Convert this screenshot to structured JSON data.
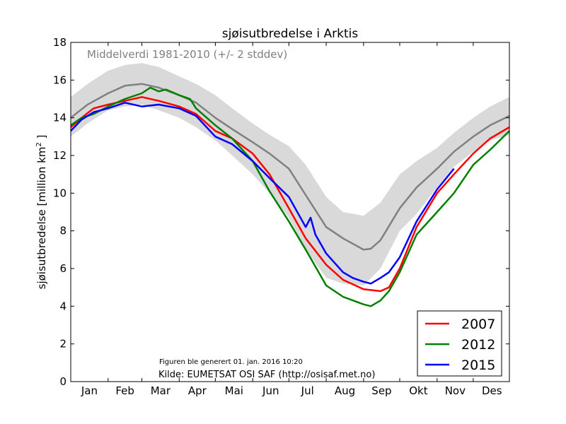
{
  "chart_data": {
    "type": "line",
    "title": "sjøisutbredelse i Arktis",
    "ylabel_main": "sjøisutbredelse [million km",
    "ylabel_sup": "2",
    "ylabel_close": " ]",
    "ylim": [
      0,
      18
    ],
    "yticks": [
      0,
      2,
      4,
      6,
      8,
      10,
      12,
      14,
      16,
      18
    ],
    "months": [
      "Jan",
      "Feb",
      "Mar",
      "Apr",
      "Mai",
      "Jun",
      "Jul",
      "Aug",
      "Sep",
      "Okt",
      "Nov",
      "Des"
    ],
    "band_label": "Middelverdi 1981-2010 (+/- 2 stddev)",
    "note_generated": "Figuren ble generert 01. jan. 2016 10:20",
    "note_source": "Kilde: EUMETSAT OSI SAF (http://osisaf.met.no)",
    "grid": false,
    "legend_position": "bottom-right",
    "band": {
      "color": "#d9d9d9",
      "x": [
        1,
        15,
        32,
        46,
        60,
        74,
        91,
        105,
        121,
        135,
        152,
        166,
        182,
        196,
        213,
        227,
        244,
        258,
        274,
        288,
        305,
        319,
        335,
        349,
        365
      ],
      "upper": [
        15.1,
        15.8,
        16.5,
        16.8,
        16.9,
        16.7,
        16.2,
        15.8,
        15.2,
        14.5,
        13.7,
        13.1,
        12.5,
        11.5,
        9.8,
        9.0,
        8.8,
        9.5,
        11.0,
        11.7,
        12.4,
        13.2,
        14.0,
        14.6,
        15.1
      ],
      "lower": [
        13.0,
        13.7,
        14.4,
        14.6,
        14.7,
        14.4,
        14.0,
        13.5,
        12.8,
        12.0,
        11.0,
        10.0,
        8.7,
        7.0,
        5.5,
        5.2,
        5.1,
        6.0,
        8.0,
        8.9,
        10.3,
        11.4,
        12.2,
        12.8,
        13.1
      ]
    },
    "mean": {
      "color": "#808080",
      "x": [
        1,
        15,
        32,
        46,
        60,
        74,
        91,
        105,
        121,
        135,
        152,
        166,
        182,
        196,
        213,
        227,
        244,
        250,
        258,
        274,
        288,
        305,
        319,
        335,
        349,
        365
      ],
      "y": [
        14.0,
        14.7,
        15.3,
        15.7,
        15.8,
        15.6,
        15.2,
        14.8,
        14.0,
        13.4,
        12.7,
        12.1,
        11.3,
        9.9,
        8.2,
        7.6,
        7.0,
        7.05,
        7.5,
        9.2,
        10.3,
        11.3,
        12.2,
        13.0,
        13.6,
        14.1
      ]
    },
    "series": [
      {
        "name": "2007",
        "color": "#ff0000",
        "x": [
          1,
          10,
          20,
          32,
          46,
          60,
          74,
          91,
          105,
          121,
          135,
          152,
          166,
          182,
          196,
          213,
          227,
          244,
          258,
          265,
          274,
          288,
          305,
          319,
          335,
          349,
          365
        ],
        "y": [
          13.5,
          14.0,
          14.5,
          14.7,
          14.9,
          15.1,
          14.9,
          14.6,
          14.2,
          13.3,
          12.9,
          12.1,
          11.0,
          9.2,
          7.6,
          6.2,
          5.4,
          4.9,
          4.8,
          5.0,
          6.0,
          8.2,
          10.0,
          11.0,
          12.1,
          12.9,
          13.5
        ]
      },
      {
        "name": "2012",
        "color": "#008000",
        "x": [
          1,
          10,
          20,
          32,
          46,
          60,
          67,
          74,
          80,
          91,
          100,
          105,
          121,
          135,
          152,
          166,
          182,
          196,
          213,
          227,
          244,
          250,
          258,
          265,
          274,
          288,
          305,
          319,
          335,
          349,
          365
        ],
        "y": [
          13.6,
          14.0,
          14.2,
          14.6,
          15.0,
          15.3,
          15.6,
          15.4,
          15.5,
          15.2,
          15.0,
          14.5,
          13.6,
          12.9,
          11.7,
          10.1,
          8.5,
          7.0,
          5.1,
          4.5,
          4.1,
          4.0,
          4.3,
          4.8,
          5.8,
          7.8,
          9.0,
          10.0,
          11.5,
          12.3,
          13.3
        ]
      },
      {
        "name": "2015",
        "color": "#0000ff",
        "x": [
          1,
          10,
          20,
          32,
          46,
          60,
          74,
          91,
          105,
          121,
          135,
          152,
          166,
          182,
          196,
          200,
          204,
          213,
          227,
          235,
          244,
          250,
          258,
          265,
          274,
          288,
          305,
          319
        ],
        "y": [
          13.3,
          13.9,
          14.3,
          14.5,
          14.8,
          14.6,
          14.7,
          14.5,
          14.1,
          13.0,
          12.6,
          11.7,
          10.8,
          9.8,
          8.2,
          8.7,
          7.8,
          6.8,
          5.8,
          5.5,
          5.3,
          5.2,
          5.5,
          5.8,
          6.6,
          8.5,
          10.2,
          11.3
        ]
      }
    ]
  }
}
